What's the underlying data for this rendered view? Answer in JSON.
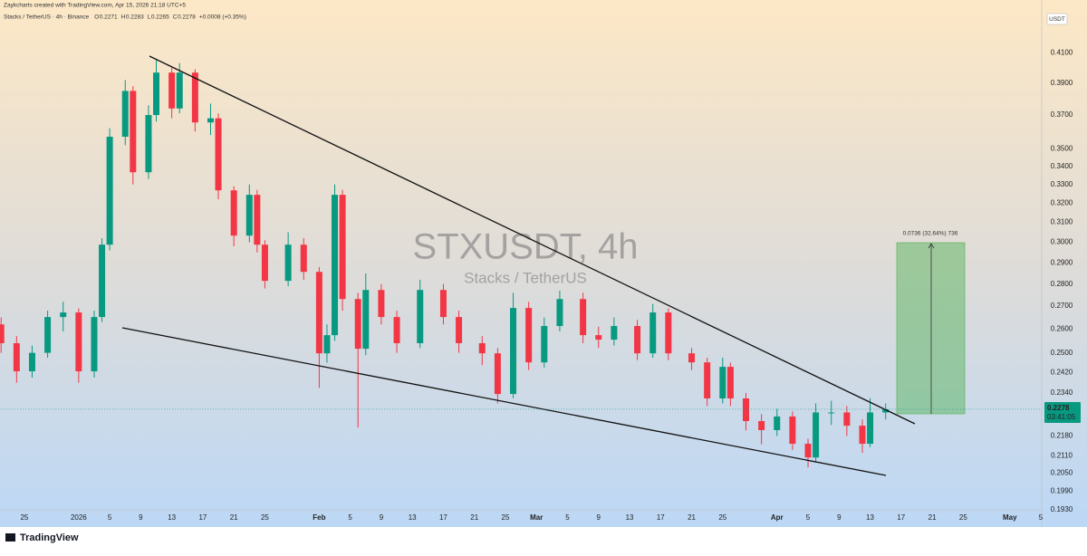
{
  "header": {
    "credit": "Zaykcharts created with TradingView.com, Apr 15, 2026 21:18 UTC+5",
    "symbol_line": "Stacks / TetherUS · 4h · Binance",
    "ohlc": [
      {
        "label": "O",
        "value": 0.2271
      },
      {
        "label": "H",
        "value": 0.2283
      },
      {
        "label": "L",
        "value": 0.2265
      },
      {
        "label": "C",
        "value": 0.2278
      }
    ],
    "change": "+0.0008 (+0.35%)"
  },
  "currency": "USDT",
  "watermark": {
    "title": "STXUSDT, 4h",
    "subtitle": "Stacks / TetherUS"
  },
  "measure_label": "0.0736 (32.64%) 736",
  "last_price": {
    "value": 0.2278,
    "countdown": "03:41:05"
  },
  "footer": {
    "brand": "TradingView"
  },
  "chart_data": {
    "type": "candlestick",
    "log": true,
    "grid": false,
    "up_color": "#089981",
    "down_color": "#f23645",
    "xlim": [
      "2025-12-22",
      "2026-05-05"
    ],
    "ylim": [
      0.193,
      0.438
    ],
    "yticks": [
      {
        "value": 0.41,
        "label": "0.4100"
      },
      {
        "value": 0.39,
        "label": "0.3900"
      },
      {
        "value": 0.37,
        "label": "0.3700"
      },
      {
        "value": 0.35,
        "label": "0.3500"
      },
      {
        "value": 0.34,
        "label": "0.3400"
      },
      {
        "value": 0.33,
        "label": "0.3300"
      },
      {
        "value": 0.32,
        "label": "0.3200"
      },
      {
        "value": 0.31,
        "label": "0.3100"
      },
      {
        "value": 0.3,
        "label": "0.3000"
      },
      {
        "value": 0.29,
        "label": "0.2900"
      },
      {
        "value": 0.28,
        "label": "0.2800"
      },
      {
        "value": 0.27,
        "label": "0.2700"
      },
      {
        "value": 0.26,
        "label": "0.2600"
      },
      {
        "value": 0.25,
        "label": "0.2500"
      },
      {
        "value": 0.242,
        "label": "0.2420"
      },
      {
        "value": 0.234,
        "label": "0.2340"
      },
      {
        "value": 0.218,
        "label": "0.2180"
      },
      {
        "value": 0.211,
        "label": "0.2110"
      },
      {
        "value": 0.205,
        "label": "0.2050"
      },
      {
        "value": 0.199,
        "label": "0.1990"
      },
      {
        "value": 0.193,
        "label": "0.1930"
      }
    ],
    "xticks": [
      {
        "value": "2025-12-25",
        "label": "25"
      },
      {
        "value": "2026-01-01",
        "label": "2026"
      },
      {
        "value": "2026-01-05",
        "label": "5"
      },
      {
        "value": "2026-01-09",
        "label": "9"
      },
      {
        "value": "2026-01-13",
        "label": "13"
      },
      {
        "value": "2026-01-17",
        "label": "17"
      },
      {
        "value": "2026-01-21",
        "label": "21"
      },
      {
        "value": "2026-01-25",
        "label": "25"
      },
      {
        "value": "2026-02-01",
        "label": "Feb"
      },
      {
        "value": "2026-02-05",
        "label": "5"
      },
      {
        "value": "2026-02-09",
        "label": "9"
      },
      {
        "value": "2026-02-13",
        "label": "13"
      },
      {
        "value": "2026-02-17",
        "label": "17"
      },
      {
        "value": "2026-02-21",
        "label": "21"
      },
      {
        "value": "2026-02-25",
        "label": "25"
      },
      {
        "value": "2026-03-01",
        "label": "Mar"
      },
      {
        "value": "2026-03-05",
        "label": "5"
      },
      {
        "value": "2026-03-09",
        "label": "9"
      },
      {
        "value": "2026-03-13",
        "label": "13"
      },
      {
        "value": "2026-03-17",
        "label": "17"
      },
      {
        "value": "2026-03-21",
        "label": "21"
      },
      {
        "value": "2026-03-25",
        "label": "25"
      },
      {
        "value": "2026-04-01",
        "label": "Apr"
      },
      {
        "value": "2026-04-05",
        "label": "5"
      },
      {
        "value": "2026-04-09",
        "label": "9"
      },
      {
        "value": "2026-04-13",
        "label": "13"
      },
      {
        "value": "2026-04-17",
        "label": "17"
      },
      {
        "value": "2026-04-21",
        "label": "21"
      },
      {
        "value": "2026-04-25",
        "label": "25"
      },
      {
        "value": "2026-05-01",
        "label": "May"
      },
      {
        "value": "2026-05-05",
        "label": "5"
      }
    ],
    "candles": {
      "x": [
        "2025-12-22",
        "2025-12-24",
        "2025-12-26",
        "2025-12-28",
        "2025-12-30",
        "2026-01-01",
        "2026-01-03",
        "2026-01-04",
        "2026-01-05",
        "2026-01-07",
        "2026-01-08",
        "2026-01-10",
        "2026-01-11",
        "2026-01-13",
        "2026-01-14",
        "2026-01-16",
        "2026-01-18",
        "2026-01-19",
        "2026-01-21",
        "2026-01-23",
        "2026-01-24",
        "2026-01-25",
        "2026-01-28",
        "2026-01-30",
        "2026-02-01",
        "2026-02-02",
        "2026-02-03",
        "2026-02-04",
        "2026-02-06",
        "2026-02-07",
        "2026-02-09",
        "2026-02-11",
        "2026-02-14",
        "2026-02-17",
        "2026-02-19",
        "2026-02-22",
        "2026-02-24",
        "2026-02-26",
        "2026-02-28",
        "2026-03-02",
        "2026-03-04",
        "2026-03-07",
        "2026-03-09",
        "2026-03-11",
        "2026-03-14",
        "2026-03-16",
        "2026-03-18",
        "2026-03-21",
        "2026-03-23",
        "2026-03-25",
        "2026-03-26",
        "2026-03-28",
        "2026-03-30",
        "2026-04-01",
        "2026-04-03",
        "2026-04-05",
        "2026-04-06",
        "2026-04-08",
        "2026-04-10",
        "2026-04-12",
        "2026-04-13",
        "2026-04-15"
      ],
      "open": [
        0.262,
        0.254,
        0.2425,
        0.25,
        0.2652,
        0.2672,
        0.2425,
        0.2652,
        0.2988,
        0.357,
        0.385,
        0.3367,
        0.37,
        0.3968,
        0.374,
        0.3968,
        0.3655,
        0.368,
        0.3268,
        0.3033,
        0.3244,
        0.2988,
        0.2815,
        0.2988,
        0.2857,
        0.2498,
        0.2574,
        0.3244,
        0.2732,
        0.2517,
        0.2773,
        0.2652,
        0.254,
        0.2773,
        0.2652,
        0.254,
        0.2498,
        0.2336,
        0.2692,
        0.2461,
        0.2613,
        0.2732,
        0.2574,
        0.2555,
        0.2613,
        0.2498,
        0.2672,
        0.2498,
        0.2461,
        0.2319,
        0.2443,
        0.2319,
        0.2234,
        0.2201,
        0.2251,
        0.2152,
        0.2104,
        0.2266,
        0.2266,
        0.2217,
        0.2152,
        0.2266
      ],
      "high": [
        0.265,
        0.257,
        0.253,
        0.268,
        0.272,
        0.269,
        0.268,
        0.302,
        0.362,
        0.392,
        0.388,
        0.376,
        0.405,
        0.4,
        0.403,
        0.399,
        0.377,
        0.371,
        0.329,
        0.33,
        0.327,
        0.301,
        0.305,
        0.302,
        0.288,
        0.262,
        0.33,
        0.327,
        0.276,
        0.285,
        0.28,
        0.268,
        0.282,
        0.28,
        0.268,
        0.257,
        0.252,
        0.276,
        0.272,
        0.265,
        0.277,
        0.276,
        0.261,
        0.265,
        0.264,
        0.271,
        0.269,
        0.252,
        0.248,
        0.248,
        0.246,
        0.234,
        0.226,
        0.228,
        0.227,
        0.217,
        0.23,
        0.231,
        0.229,
        0.224,
        0.232,
        0.23
      ],
      "low": [
        0.25,
        0.238,
        0.24,
        0.248,
        0.259,
        0.238,
        0.24,
        0.263,
        0.296,
        0.352,
        0.33,
        0.333,
        0.366,
        0.368,
        0.371,
        0.36,
        0.358,
        0.322,
        0.298,
        0.3,
        0.295,
        0.278,
        0.279,
        0.282,
        0.236,
        0.246,
        0.255,
        0.268,
        0.221,
        0.249,
        0.262,
        0.25,
        0.252,
        0.262,
        0.25,
        0.245,
        0.23,
        0.232,
        0.243,
        0.244,
        0.259,
        0.254,
        0.252,
        0.253,
        0.247,
        0.248,
        0.247,
        0.243,
        0.229,
        0.23,
        0.229,
        0.22,
        0.215,
        0.218,
        0.213,
        0.207,
        0.209,
        0.222,
        0.218,
        0.212,
        0.214,
        0.224
      ],
      "close": [
        0.254,
        0.2425,
        0.25,
        0.2652,
        0.2672,
        0.2425,
        0.2652,
        0.2988,
        0.357,
        0.385,
        0.3367,
        0.37,
        0.3968,
        0.374,
        0.3968,
        0.3655,
        0.368,
        0.3268,
        0.3033,
        0.3244,
        0.2988,
        0.2815,
        0.2988,
        0.2857,
        0.2498,
        0.2574,
        0.3244,
        0.2732,
        0.2517,
        0.2773,
        0.2652,
        0.254,
        0.2773,
        0.2652,
        0.254,
        0.2498,
        0.2336,
        0.2692,
        0.2461,
        0.2613,
        0.2732,
        0.2574,
        0.2555,
        0.2613,
        0.2498,
        0.2672,
        0.2498,
        0.2461,
        0.2319,
        0.2443,
        0.2319,
        0.2234,
        0.2201,
        0.2251,
        0.2152,
        0.2104,
        0.2266,
        0.2266,
        0.2217,
        0.2152,
        0.2266,
        0.2278
      ]
    }
  }
}
